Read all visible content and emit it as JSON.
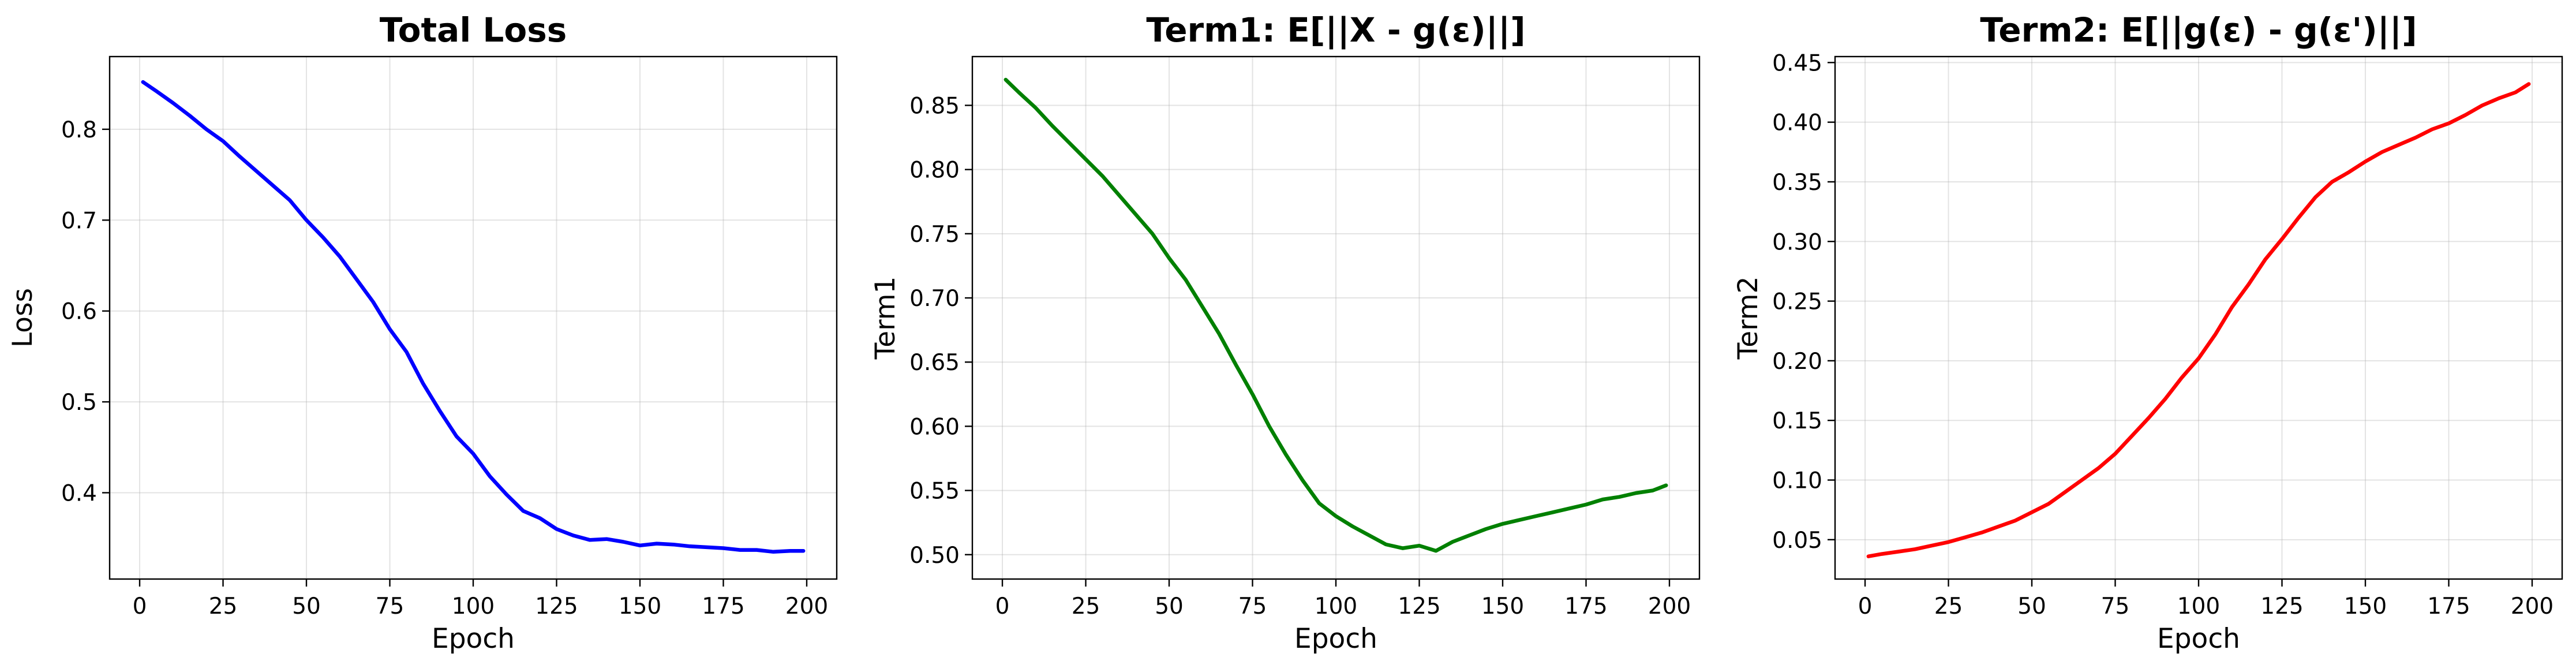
{
  "chart_data": [
    {
      "type": "line",
      "title": "Total Loss",
      "xlabel": "Epoch",
      "ylabel": "Loss",
      "xlim": [
        -9,
        209
      ],
      "ylim": [
        0.305,
        0.88
      ],
      "xticks": [
        0,
        25,
        50,
        75,
        100,
        125,
        150,
        175,
        200
      ],
      "yticks": [
        0.4,
        0.5,
        0.6,
        0.7,
        0.8
      ],
      "ytick_labels": [
        "0.4",
        "0.5",
        "0.6",
        "0.7",
        "0.8"
      ],
      "grid": true,
      "series_color": "#0000ff",
      "series": [
        {
          "x": [
            1,
            5,
            10,
            15,
            20,
            25,
            30,
            35,
            40,
            45,
            50,
            55,
            60,
            65,
            70,
            75,
            80,
            85,
            90,
            95,
            100,
            105,
            110,
            115,
            120,
            125,
            130,
            135,
            140,
            145,
            150,
            155,
            160,
            165,
            170,
            175,
            180,
            185,
            190,
            195,
            199
          ],
          "y": [
            0.852,
            0.842,
            0.829,
            0.815,
            0.8,
            0.787,
            0.77,
            0.754,
            0.738,
            0.722,
            0.7,
            0.681,
            0.66,
            0.635,
            0.61,
            0.58,
            0.555,
            0.52,
            0.49,
            0.462,
            0.443,
            0.418,
            0.398,
            0.38,
            0.372,
            0.36,
            0.353,
            0.348,
            0.349,
            0.346,
            0.342,
            0.344,
            0.343,
            0.341,
            0.34,
            0.339,
            0.337,
            0.337,
            0.335,
            0.336,
            0.336
          ]
        }
      ]
    },
    {
      "type": "line",
      "title": "Term1: E[||X - g(ε)||]",
      "xlabel": "Epoch",
      "ylabel": "Term1",
      "xlim": [
        -9,
        209
      ],
      "ylim": [
        0.481,
        0.888
      ],
      "xticks": [
        0,
        25,
        50,
        75,
        100,
        125,
        150,
        175,
        200
      ],
      "yticks": [
        0.5,
        0.55,
        0.6,
        0.65,
        0.7,
        0.75,
        0.8,
        0.85
      ],
      "ytick_labels": [
        "0.50",
        "0.55",
        "0.60",
        "0.65",
        "0.70",
        "0.75",
        "0.80",
        "0.85"
      ],
      "grid": true,
      "series_color": "#008000",
      "series": [
        {
          "x": [
            1,
            5,
            10,
            15,
            20,
            25,
            30,
            35,
            40,
            45,
            50,
            55,
            60,
            65,
            70,
            75,
            80,
            85,
            90,
            95,
            100,
            105,
            110,
            115,
            120,
            125,
            130,
            135,
            140,
            145,
            150,
            155,
            160,
            165,
            170,
            175,
            180,
            185,
            190,
            195,
            199
          ],
          "y": [
            0.87,
            0.86,
            0.848,
            0.834,
            0.821,
            0.808,
            0.795,
            0.78,
            0.765,
            0.75,
            0.731,
            0.714,
            0.693,
            0.672,
            0.648,
            0.625,
            0.6,
            0.578,
            0.558,
            0.54,
            0.53,
            0.522,
            0.515,
            0.508,
            0.505,
            0.507,
            0.503,
            0.51,
            0.515,
            0.52,
            0.524,
            0.527,
            0.53,
            0.533,
            0.536,
            0.539,
            0.543,
            0.545,
            0.548,
            0.55,
            0.554
          ]
        }
      ]
    },
    {
      "type": "line",
      "title": "Term2: E[||g(ε) - g(ε')||]",
      "xlabel": "Epoch",
      "ylabel": "Term2",
      "xlim": [
        -9,
        209
      ],
      "ylim": [
        0.017,
        0.455
      ],
      "xticks": [
        0,
        25,
        50,
        75,
        100,
        125,
        150,
        175,
        200
      ],
      "yticks": [
        0.05,
        0.1,
        0.15,
        0.2,
        0.25,
        0.3,
        0.35,
        0.4,
        0.45
      ],
      "ytick_labels": [
        "0.05",
        "0.10",
        "0.15",
        "0.20",
        "0.25",
        "0.30",
        "0.35",
        "0.40",
        "0.45"
      ],
      "grid": true,
      "series_color": "#ff0000",
      "series": [
        {
          "x": [
            1,
            5,
            10,
            15,
            20,
            25,
            30,
            35,
            40,
            45,
            50,
            55,
            60,
            65,
            70,
            75,
            80,
            85,
            90,
            95,
            100,
            105,
            110,
            115,
            120,
            125,
            130,
            135,
            140,
            145,
            150,
            155,
            160,
            165,
            170,
            175,
            180,
            185,
            190,
            195,
            199
          ],
          "y": [
            0.036,
            0.038,
            0.04,
            0.042,
            0.045,
            0.048,
            0.052,
            0.056,
            0.061,
            0.066,
            0.073,
            0.08,
            0.09,
            0.1,
            0.11,
            0.122,
            0.137,
            0.152,
            0.168,
            0.186,
            0.202,
            0.222,
            0.245,
            0.264,
            0.285,
            0.302,
            0.32,
            0.337,
            0.35,
            0.358,
            0.367,
            0.375,
            0.381,
            0.387,
            0.394,
            0.399,
            0.406,
            0.414,
            0.42,
            0.425,
            0.432
          ]
        }
      ]
    }
  ]
}
